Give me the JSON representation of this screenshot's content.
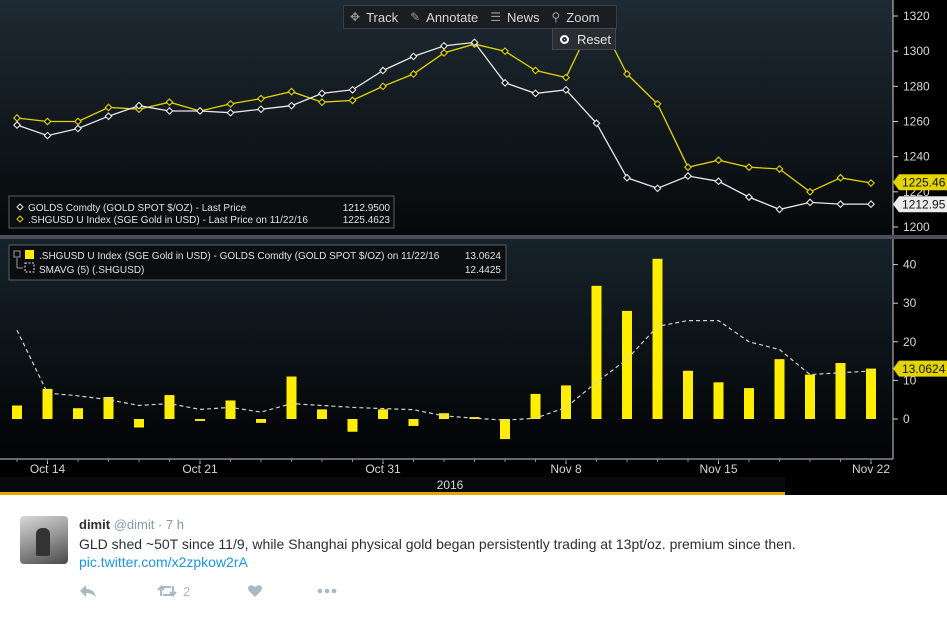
{
  "toolbar": {
    "items": [
      {
        "label": "Track",
        "icon": "crosshair-icon"
      },
      {
        "label": "Annotate",
        "icon": "pencil-icon"
      },
      {
        "label": "News",
        "icon": "news-icon"
      },
      {
        "label": "Zoom",
        "icon": "magnifier-icon"
      }
    ],
    "reset_label": "Reset"
  },
  "colors": {
    "white_series": "#e8e8e8",
    "yellow_series": "#e3d400",
    "bar": "#ffee00",
    "sma": "#d0d0d0"
  },
  "chart_data": [
    {
      "type": "line",
      "panel": "top",
      "x": [
        "Oct 13",
        "Oct 14",
        "Oct 17",
        "Oct 18",
        "Oct 19",
        "Oct 20",
        "Oct 21",
        "Oct 24",
        "Oct 25",
        "Oct 26",
        "Oct 27",
        "Oct 28",
        "Oct 31",
        "Nov 1",
        "Nov 2",
        "Nov 3",
        "Nov 4",
        "Nov 7",
        "Nov 8",
        "Nov 9",
        "Nov 10",
        "Nov 11",
        "Nov 14",
        "Nov 15",
        "Nov 16",
        "Nov 17",
        "Nov 18",
        "Nov 21",
        "Nov 22"
      ],
      "series": [
        {
          "name": "GOLDS Comdty (GOLD SPOT $/OZ) - Last Price",
          "last_value": "1212.9500",
          "axis_tag": "1212.95",
          "values": [
            1258,
            1252,
            1256,
            1263,
            1269,
            1266,
            1266,
            1265,
            1267,
            1269,
            1276,
            1278,
            1289,
            1297,
            1303,
            1305,
            1282,
            1276,
            1278,
            1259,
            1228,
            1222,
            1229,
            1226,
            1217,
            1210,
            1214,
            1213,
            1213
          ]
        },
        {
          "name": ".SHGUSD U Index (SGE Gold in USD) - Last Price on 11/22/16",
          "last_value": "1225.4623",
          "axis_tag": "1225.46",
          "values": [
            1262,
            1260,
            1260,
            1268,
            1267,
            1271,
            1266,
            1270,
            1273,
            1277,
            1271,
            1272,
            1280,
            1287,
            1299,
            1304,
            1300,
            1289,
            1285,
            1321,
            1287,
            1270,
            1234,
            1238,
            1234,
            1233,
            1220,
            1228,
            1225
          ]
        }
      ],
      "ylim": [
        1200,
        1320
      ],
      "yticks": [
        1200,
        1220,
        1240,
        1260,
        1280,
        1300,
        1320
      ]
    },
    {
      "type": "bar",
      "panel": "bottom",
      "categories": [
        "Oct 13",
        "Oct 14",
        "Oct 17",
        "Oct 18",
        "Oct 19",
        "Oct 20",
        "Oct 21",
        "Oct 24",
        "Oct 25",
        "Oct 26",
        "Oct 27",
        "Oct 28",
        "Oct 31",
        "Nov 1",
        "Nov 2",
        "Nov 3",
        "Nov 4",
        "Nov 7",
        "Nov 8",
        "Nov 9",
        "Nov 10",
        "Nov 11",
        "Nov 14",
        "Nov 15",
        "Nov 16",
        "Nov 17",
        "Nov 18",
        "Nov 21",
        "Nov 22"
      ],
      "series": [
        {
          "name": ".SHGUSD U Index (SGE Gold in USD) - GOLDS Comdty (GOLD SPOT $/OZ) on 11/22/16",
          "last_value": "13.0624",
          "axis_tag": "13.0624",
          "values": [
            3.5,
            7.8,
            2.8,
            5.7,
            -2.2,
            6.2,
            -0.5,
            4.8,
            -1,
            11,
            2.5,
            -3.3,
            2.5,
            -1.8,
            1.5,
            0.5,
            -5.2,
            6.5,
            8.7,
            34.5,
            28,
            41.5,
            12.5,
            9.5,
            8,
            15.5,
            11.5,
            14.5,
            13.06
          ]
        },
        {
          "name": "SMAVG (5) (.SHGUSD)",
          "last_value": "12.4425",
          "style": "dashed",
          "values": [
            23,
            6.7,
            6,
            5,
            3.5,
            4,
            2.5,
            3,
            1.8,
            4,
            3.5,
            3,
            2.7,
            2.4,
            0.8,
            0.2,
            -0.3,
            0.2,
            3,
            9.5,
            15.5,
            24,
            25.5,
            25.5,
            20,
            18,
            11.5,
            12,
            12.44
          ]
        }
      ],
      "ylim": [
        -10,
        42
      ],
      "yticks": [
        0,
        10,
        20,
        30,
        40
      ]
    }
  ],
  "x_axis": {
    "labels": [
      {
        "text": "Oct 14",
        "idx": 1
      },
      {
        "text": "Oct 21",
        "idx": 6
      },
      {
        "text": "Oct 31",
        "idx": 12
      },
      {
        "text": "Nov 8",
        "idx": 18
      },
      {
        "text": "Nov 15",
        "idx": 23
      },
      {
        "text": "Nov 22",
        "idx": 28
      }
    ],
    "year": "2016"
  },
  "tweet": {
    "name": "dimit",
    "handle": "@dimit",
    "time": "· 7 h",
    "text": "GLD shed ~50T since 11/9, while Shanghai physical gold began persistently trading at 13pt/oz. premium since then.",
    "link": "pic.twitter.com/x2zpkow2rA",
    "retweet_count": "2"
  }
}
